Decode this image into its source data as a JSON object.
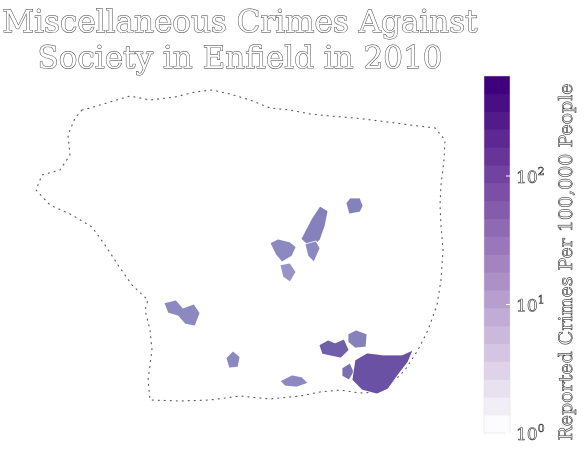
{
  "title": {
    "line1": "Miscellaneous Crimes Against",
    "line2": "Society in Enfield in 2010"
  },
  "colorbar": {
    "label": "Reported Crimes Per 100,000 People",
    "scale": "log",
    "range": [
      1,
      600
    ],
    "ticks": [
      {
        "base": "10",
        "exp": "0",
        "value": 1
      },
      {
        "base": "10",
        "exp": "1",
        "value": 10
      },
      {
        "base": "10",
        "exp": "2",
        "value": 100
      }
    ],
    "color_low": "#fcfbfd",
    "color_high": "#3f007d",
    "steps": 20
  },
  "map": {
    "region": "Enfield",
    "year": "2010",
    "shaded_areas_colors": [
      "#8c89c0",
      "#6a51a3",
      "#7d6fb3",
      "#9794c8",
      "#8581bb"
    ]
  }
}
